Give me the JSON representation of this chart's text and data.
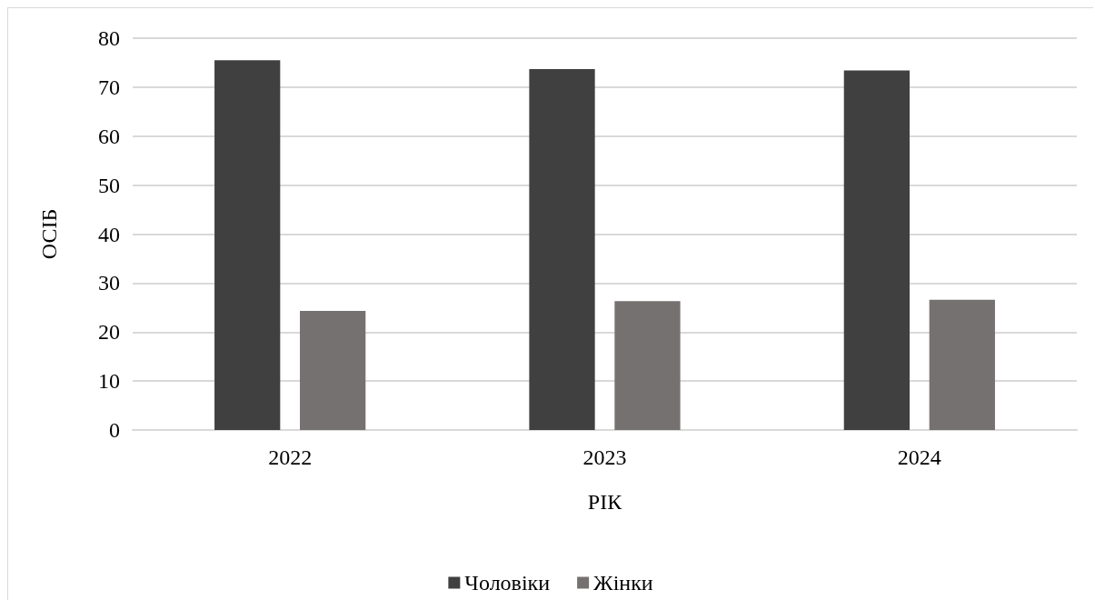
{
  "chart_data": {
    "type": "bar",
    "xlabel": "РІК",
    "ylabel": "ОСІБ",
    "categories": [
      "2022",
      "2023",
      "2024"
    ],
    "series": [
      {
        "name": "Чоловіки",
        "color": "#404040",
        "values": [
          75.5,
          73.7,
          73.4
        ]
      },
      {
        "name": "Жінки",
        "color": "#767171",
        "values": [
          24.3,
          26.3,
          26.6
        ]
      }
    ],
    "ylim": [
      0,
      80
    ],
    "yticks": [
      0,
      10,
      20,
      30,
      40,
      50,
      60,
      70,
      80
    ],
    "grid": "y",
    "legend": "bottom"
  }
}
